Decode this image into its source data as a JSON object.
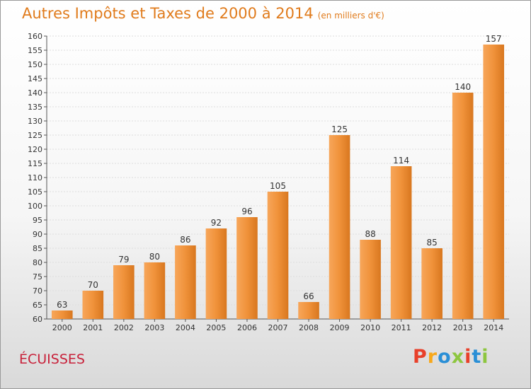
{
  "chart_data": {
    "type": "bar",
    "title": "Autres Impôts et Taxes de 2000 à 2014",
    "unit": "(en milliers d'€)",
    "categories": [
      "2000",
      "2001",
      "2002",
      "2003",
      "2004",
      "2005",
      "2006",
      "2007",
      "2008",
      "2009",
      "2010",
      "2011",
      "2012",
      "2013",
      "2014"
    ],
    "values": [
      63,
      70,
      79,
      80,
      86,
      92,
      96,
      105,
      66,
      125,
      88,
      114,
      85,
      140,
      157
    ],
    "ylim": [
      60,
      160
    ],
    "ytick_step": 5,
    "grid": true,
    "bar_color": "#f0923a"
  },
  "place": "ÉCUISSES",
  "logo": {
    "letters": [
      "P",
      "r",
      "o",
      "x",
      "i",
      "t",
      "i"
    ],
    "colors": [
      "#e8402a",
      "#f7a81b",
      "#2a8fd6",
      "#8dc63f",
      "#e8402a",
      "#2a8fd6",
      "#8dc63f"
    ]
  }
}
